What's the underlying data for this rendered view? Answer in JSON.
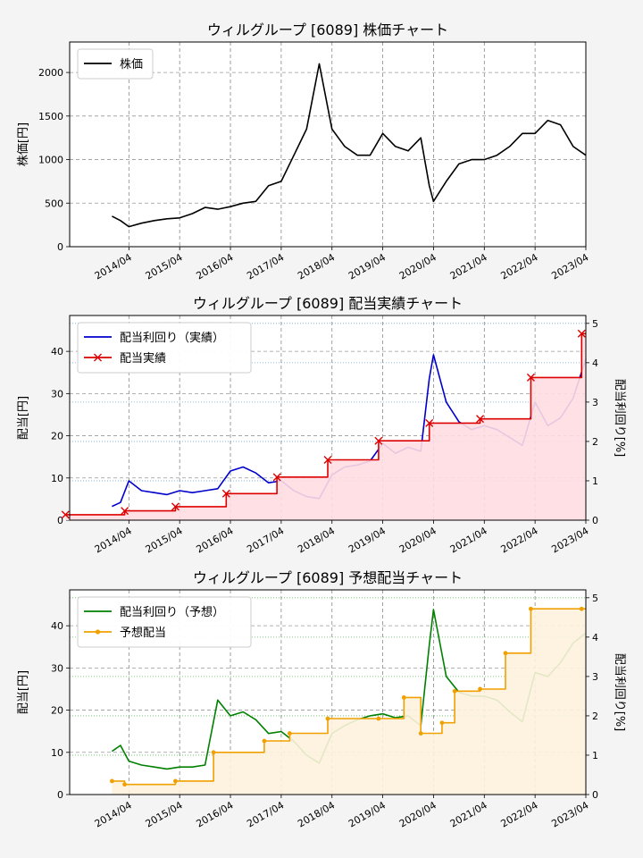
{
  "chart_data": [
    {
      "type": "line",
      "title": "ウィルグループ [6089]  株価チャート",
      "ylabel": "株価[円]",
      "ylim": [
        0,
        2350
      ],
      "yticks": [
        "0",
        "500",
        "1000",
        "1500",
        "2000"
      ],
      "xlim": [
        "2013-02",
        "2023-04"
      ],
      "xticks": [
        "2014/04",
        "2015/04",
        "2016/04",
        "2017/04",
        "2018/04",
        "2019/04",
        "2020/04",
        "2021/04",
        "2022/04",
        "2023/04"
      ],
      "grid": true,
      "legend": "top-left",
      "series": [
        {
          "name": "株価",
          "color": "#000000",
          "x": [
            "2013-12",
            "2014-02",
            "2014-04",
            "2014-07",
            "2014-10",
            "2015-01",
            "2015-04",
            "2015-07",
            "2015-10",
            "2016-01",
            "2016-04",
            "2016-07",
            "2016-10",
            "2017-01",
            "2017-04",
            "2017-07",
            "2017-10",
            "2018-01",
            "2018-04",
            "2018-07",
            "2018-10",
            "2019-01",
            "2019-04",
            "2019-07",
            "2019-10",
            "2020-01",
            "2020-03",
            "2020-04",
            "2020-07",
            "2020-10",
            "2021-01",
            "2021-04",
            "2021-07",
            "2021-10",
            "2022-01",
            "2022-04",
            "2022-07",
            "2022-10",
            "2023-01",
            "2023-04"
          ],
          "y": [
            350,
            300,
            230,
            270,
            300,
            320,
            330,
            380,
            450,
            430,
            460,
            500,
            520,
            700,
            750,
            1050,
            1350,
            2100,
            1350,
            1150,
            1050,
            1050,
            1300,
            1150,
            1100,
            1250,
            700,
            520,
            750,
            950,
            1000,
            1000,
            1050,
            1150,
            1300,
            1300,
            1450,
            1400,
            1150,
            1050
          ]
        }
      ]
    },
    {
      "type": "line",
      "title": "ウィルグループ [6089]  配当実績チャート",
      "ylabel": "配当[円]",
      "ylabel_right": "配当利回り[%]",
      "ylim": [
        0,
        48.5
      ],
      "yticks": [
        "0",
        "10",
        "20",
        "30",
        "40"
      ],
      "ylim_right": [
        0,
        5.2
      ],
      "yticks_right": [
        "0",
        "1",
        "2",
        "3",
        "4",
        "5"
      ],
      "xlim": [
        "2013-02",
        "2023-04"
      ],
      "xticks": [
        "2014/04",
        "2015/04",
        "2016/04",
        "2017/04",
        "2018/04",
        "2019/04",
        "2020/04",
        "2021/04",
        "2022/04",
        "2023/04"
      ],
      "grid": true,
      "legend": "top-left",
      "series": [
        {
          "name": "配当利回り（実績）",
          "color": "#0000cc",
          "axis": "right",
          "x": [
            "2013-12",
            "2014-02",
            "2014-04",
            "2014-07",
            "2014-10",
            "2015-01",
            "2015-04",
            "2015-07",
            "2015-10",
            "2016-01",
            "2016-04",
            "2016-07",
            "2016-10",
            "2017-01",
            "2017-04",
            "2017-07",
            "2017-10",
            "2018-01",
            "2018-04",
            "2018-07",
            "2018-10",
            "2019-01",
            "2019-04",
            "2019-07",
            "2019-10",
            "2020-01",
            "2020-03",
            "2020-04",
            "2020-07",
            "2020-10",
            "2021-01",
            "2021-04",
            "2021-07",
            "2021-10",
            "2022-01",
            "2022-04",
            "2022-07",
            "2022-10",
            "2023-01",
            "2023-04"
          ],
          "y": [
            0.35,
            0.45,
            1.0,
            0.75,
            0.7,
            0.65,
            0.75,
            0.7,
            0.75,
            0.8,
            1.25,
            1.35,
            1.2,
            0.95,
            1.0,
            0.75,
            0.6,
            0.55,
            1.15,
            1.35,
            1.4,
            1.5,
            1.95,
            1.7,
            1.85,
            1.75,
            3.6,
            4.2,
            3.0,
            2.5,
            2.3,
            2.4,
            2.3,
            2.1,
            1.9,
            3.0,
            2.4,
            2.6,
            3.1,
            4.1
          ]
        },
        {
          "name": "配当実績",
          "color": "#dd0000",
          "axis": "left",
          "step": true,
          "marker": "x",
          "x": [
            "2013-01",
            "2014-03",
            "2015-03",
            "2016-03",
            "2017-03",
            "2018-03",
            "2019-03",
            "2020-03",
            "2021-03",
            "2022-03",
            "2023-03"
          ],
          "y": [
            1.3,
            2.2,
            3.2,
            6.3,
            10.2,
            14.3,
            18.8,
            23.0,
            24.0,
            33.8,
            44.2
          ]
        }
      ]
    },
    {
      "type": "line",
      "title": "ウィルグループ [6089]  予想配当チャート",
      "ylabel": "配当[円]",
      "ylabel_right": "配当利回り[%]",
      "ylim": [
        0,
        48.5
      ],
      "yticks": [
        "0",
        "10",
        "20",
        "30",
        "40"
      ],
      "ylim_right": [
        0,
        5.2
      ],
      "yticks_right": [
        "0",
        "1",
        "2",
        "3",
        "4",
        "5"
      ],
      "xlim": [
        "2013-02",
        "2023-04"
      ],
      "xticks": [
        "2014/04",
        "2015/04",
        "2016/04",
        "2017/04",
        "2018/04",
        "2019/04",
        "2020/04",
        "2021/04",
        "2022/04",
        "2023/04"
      ],
      "grid": true,
      "legend": "top-left",
      "series": [
        {
          "name": "配当利回り（予想）",
          "color": "#008000",
          "axis": "right",
          "x": [
            "2013-12",
            "2014-02",
            "2014-04",
            "2014-07",
            "2014-10",
            "2015-01",
            "2015-04",
            "2015-07",
            "2015-10",
            "2016-01",
            "2016-04",
            "2016-07",
            "2016-10",
            "2017-01",
            "2017-04",
            "2017-07",
            "2017-10",
            "2018-01",
            "2018-04",
            "2018-07",
            "2018-10",
            "2019-01",
            "2019-04",
            "2019-07",
            "2019-10",
            "2020-01",
            "2020-03",
            "2020-04",
            "2020-07",
            "2020-10",
            "2021-01",
            "2021-04",
            "2021-07",
            "2021-10",
            "2022-01",
            "2022-04",
            "2022-07",
            "2022-10",
            "2023-01",
            "2023-04"
          ],
          "y": [
            1.1,
            1.25,
            0.85,
            0.75,
            0.7,
            0.65,
            0.7,
            0.7,
            0.75,
            2.4,
            2.0,
            2.1,
            1.9,
            1.55,
            1.6,
            1.35,
            1.0,
            0.8,
            1.55,
            1.75,
            1.9,
            2.0,
            2.05,
            1.95,
            2.0,
            1.75,
            3.8,
            4.7,
            3.0,
            2.6,
            2.5,
            2.5,
            2.4,
            2.1,
            1.85,
            3.1,
            3.0,
            3.35,
            3.85,
            4.1
          ]
        },
        {
          "name": "予想配当",
          "color": "#f0a000",
          "axis": "left",
          "step": true,
          "marker": "o",
          "x": [
            "2013-12",
            "2014-03",
            "2015-03",
            "2015-12",
            "2016-12",
            "2017-06",
            "2018-03",
            "2019-03",
            "2019-09",
            "2020-01",
            "2020-06",
            "2020-09",
            "2021-03",
            "2021-09",
            "2022-03",
            "2023-03"
          ],
          "y": [
            3.2,
            2.4,
            3.2,
            10.0,
            12.7,
            14.5,
            18.0,
            18.0,
            23.0,
            14.5,
            17.0,
            24.5,
            25.0,
            33.5,
            44.0,
            44.0
          ]
        }
      ]
    }
  ]
}
